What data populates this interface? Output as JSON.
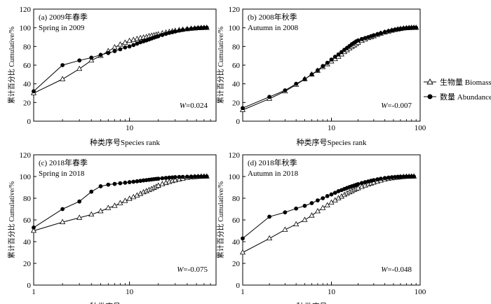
{
  "figure": {
    "legend": {
      "biomass_label": "生物量 Biomass",
      "abundance_label": "数量 Abundance"
    }
  },
  "chart_data": [
    {
      "type": "line",
      "panel_label": "(a) 2009年春季",
      "panel_subtitle": "Spring in 2009",
      "w_prefix": "W",
      "w_value": "=0.024",
      "xlabel": "种类序号Species rank",
      "ylabel": "累计百分比 Cumulative/%",
      "xscale": "log",
      "xlim": [
        1,
        80
      ],
      "ylim": [
        0,
        120
      ],
      "xticks": [
        {
          "v": 10,
          "label": "10"
        }
      ],
      "yticks": [
        0,
        20,
        40,
        60,
        80,
        100,
        120
      ],
      "series": [
        {
          "name": "生物量 Biomass",
          "marker": "open-triangle",
          "x": [
            1,
            2,
            3,
            4,
            5,
            6,
            7,
            8,
            9,
            10,
            11,
            12,
            13,
            14,
            15,
            16,
            17,
            18,
            19,
            20,
            22,
            24,
            26,
            28,
            30,
            33,
            36,
            40,
            44,
            48,
            52,
            56,
            60,
            64
          ],
          "y": [
            30,
            45,
            56,
            65,
            70,
            75,
            79,
            82,
            84,
            86,
            87,
            88,
            89,
            89.5,
            90,
            91,
            91.5,
            92,
            92.5,
            93,
            94,
            94.8,
            95.5,
            96.2,
            96.8,
            97.5,
            98,
            98.6,
            99,
            99.3,
            99.6,
            99.8,
            99.9,
            100
          ]
        },
        {
          "name": "数量 Abundance",
          "marker": "filled-circle",
          "x": [
            1,
            2,
            3,
            4,
            5,
            6,
            7,
            8,
            9,
            10,
            11,
            12,
            13,
            14,
            15,
            16,
            17,
            18,
            19,
            20,
            22,
            24,
            26,
            28,
            30,
            33,
            36,
            40,
            44,
            48,
            52,
            56,
            60,
            64
          ],
          "y": [
            32,
            60,
            65,
            68,
            71,
            73,
            75,
            77,
            79,
            80,
            81.5,
            83,
            84.5,
            85.5,
            86.5,
            87.5,
            88.5,
            89.5,
            90.3,
            91,
            92.3,
            93.5,
            94.5,
            95.3,
            96,
            97,
            97.7,
            98.5,
            99,
            99.4,
            99.7,
            99.9,
            100,
            100
          ]
        }
      ]
    },
    {
      "type": "line",
      "panel_label": "(b) 2008年秋季",
      "panel_subtitle": "Autumn in 2008",
      "w_prefix": "W",
      "w_value": "=-0.007",
      "xlabel": "种类序号Species rank",
      "ylabel": "累计百分比 Cumulative/%",
      "xscale": "log",
      "xlim": [
        1,
        100
      ],
      "ylim": [
        0,
        120
      ],
      "xticks": [
        {
          "v": 10,
          "label": "10"
        },
        {
          "v": 100,
          "label": "100"
        }
      ],
      "yticks": [
        0,
        20,
        40,
        60,
        80,
        100,
        120
      ],
      "series": [
        {
          "name": "生物量 Biomass",
          "marker": "open-triangle",
          "x": [
            1,
            2,
            3,
            4,
            5,
            6,
            7,
            8,
            9,
            10,
            11,
            12,
            13,
            14,
            15,
            16,
            17,
            18,
            19,
            20,
            22,
            24,
            26,
            28,
            30,
            33,
            36,
            40,
            44,
            48,
            52,
            56,
            60,
            65,
            70,
            75,
            80,
            85,
            90
          ],
          "y": [
            12,
            24,
            32,
            39,
            45,
            50,
            54,
            58,
            61,
            64,
            66.5,
            69,
            71.5,
            74,
            76,
            78,
            79.5,
            81,
            82.5,
            84,
            86,
            87.5,
            89,
            90,
            91,
            92.5,
            93.8,
            95,
            96,
            97,
            97.7,
            98.3,
            98.8,
            99.3,
            99.6,
            99.8,
            99.9,
            100,
            100
          ]
        },
        {
          "name": "数量 Abundance",
          "marker": "filled-circle",
          "x": [
            1,
            2,
            3,
            4,
            5,
            6,
            7,
            8,
            9,
            10,
            11,
            12,
            13,
            14,
            15,
            16,
            17,
            18,
            19,
            20,
            22,
            24,
            26,
            28,
            30,
            33,
            36,
            40,
            44,
            48,
            52,
            56,
            60,
            65,
            70,
            75,
            80,
            85,
            90
          ],
          "y": [
            14,
            26,
            33,
            40,
            45,
            50,
            54.5,
            59,
            62.5,
            66,
            69,
            71.5,
            74,
            76.5,
            78.5,
            80.5,
            82.5,
            84,
            85.5,
            86.5,
            88,
            89,
            90,
            91,
            92,
            93.2,
            94.3,
            95.5,
            96.5,
            97.3,
            98,
            98.5,
            99,
            99.4,
            99.7,
            99.9,
            100,
            100,
            100
          ]
        }
      ]
    },
    {
      "type": "line",
      "panel_label": "(c) 2018年春季",
      "panel_subtitle": "Spring in 2018",
      "w_prefix": "W",
      "w_value": "=-0.075",
      "xlabel": "种类序号Species rank",
      "ylabel": "累计百分比 Cumulative/%",
      "xscale": "log",
      "xlim": [
        1,
        80
      ],
      "ylim": [
        0,
        120
      ],
      "xticks": [
        {
          "v": 1,
          "label": "1"
        },
        {
          "v": 10,
          "label": "10"
        }
      ],
      "yticks": [
        0,
        20,
        40,
        60,
        80,
        100,
        120
      ],
      "series": [
        {
          "name": "生物量 Biomass",
          "marker": "open-triangle",
          "x": [
            1,
            2,
            3,
            4,
            5,
            6,
            7,
            8,
            9,
            10,
            11,
            12,
            13,
            14,
            15,
            16,
            17,
            18,
            19,
            20,
            22,
            24,
            26,
            28,
            30,
            33,
            36,
            40,
            44,
            48,
            52,
            56,
            60,
            64
          ],
          "y": [
            50,
            58,
            62,
            65,
            68,
            71,
            73,
            75.5,
            77.5,
            79.5,
            81,
            82.5,
            84,
            85.5,
            86.5,
            87.5,
            88.5,
            89.5,
            90.5,
            91.5,
            93,
            94,
            95,
            95.8,
            96.5,
            97.4,
            98.1,
            98.8,
            99.2,
            99.5,
            99.7,
            99.9,
            100,
            100
          ]
        },
        {
          "name": "数量 Abundance",
          "marker": "filled-circle",
          "x": [
            1,
            2,
            3,
            4,
            5,
            6,
            7,
            8,
            9,
            10,
            11,
            12,
            13,
            14,
            15,
            16,
            17,
            18,
            19,
            20,
            22,
            24,
            26,
            28,
            30,
            33,
            36,
            40,
            44,
            48,
            52,
            56,
            60,
            64
          ],
          "y": [
            53,
            70,
            77,
            86,
            91,
            92.5,
            93.2,
            93.8,
            94.3,
            94.8,
            95.2,
            95.6,
            96,
            96.4,
            96.7,
            97,
            97.3,
            97.6,
            97.8,
            98,
            98.4,
            98.7,
            99,
            99.2,
            99.4,
            99.6,
            99.7,
            99.8,
            99.9,
            100,
            100,
            100,
            100,
            100
          ]
        }
      ]
    },
    {
      "type": "line",
      "panel_label": "(d) 2018年秋季",
      "panel_subtitle": "Autumn in 2018",
      "w_prefix": "W",
      "w_value": "=-0.048",
      "xlabel": "种类序号Species rank",
      "ylabel": "累计百分比 Cumulative/%",
      "xscale": "log",
      "xlim": [
        1,
        100
      ],
      "ylim": [
        0,
        120
      ],
      "xticks": [
        {
          "v": 1,
          "label": "1"
        },
        {
          "v": 10,
          "label": "10"
        },
        {
          "v": 100,
          "label": "100"
        }
      ],
      "yticks": [
        0,
        20,
        40,
        60,
        80,
        100,
        120
      ],
      "series": [
        {
          "name": "生物量 Biomass",
          "marker": "open-triangle",
          "x": [
            1,
            2,
            3,
            4,
            5,
            6,
            7,
            8,
            9,
            10,
            11,
            12,
            13,
            14,
            15,
            16,
            17,
            18,
            19,
            20,
            22,
            24,
            26,
            28,
            30,
            33,
            36,
            40,
            44,
            48,
            52,
            56,
            60,
            65,
            70,
            75,
            80,
            85
          ],
          "y": [
            30,
            43,
            51,
            56,
            60,
            64,
            68,
            71,
            73.5,
            76,
            78,
            80,
            81.5,
            83,
            84.5,
            85.5,
            86.5,
            87.5,
            88.5,
            89.2,
            90.5,
            91.7,
            92.7,
            93.6,
            94.4,
            95.4,
            96.3,
            97.2,
            97.9,
            98.4,
            98.8,
            99.1,
            99.4,
            99.6,
            99.8,
            99.9,
            100,
            100
          ]
        },
        {
          "name": "数量 Abundance",
          "marker": "filled-circle",
          "x": [
            1,
            2,
            3,
            4,
            5,
            6,
            7,
            8,
            9,
            10,
            11,
            12,
            13,
            14,
            15,
            16,
            17,
            18,
            19,
            20,
            22,
            24,
            26,
            28,
            30,
            33,
            36,
            40,
            44,
            48,
            52,
            56,
            60,
            65,
            70,
            75,
            80,
            85
          ],
          "y": [
            43,
            63,
            67,
            70.5,
            73,
            75.5,
            78,
            80,
            82,
            83.5,
            85,
            86.5,
            87.5,
            88.5,
            89.5,
            90.3,
            91,
            91.7,
            92.3,
            93,
            94,
            94.8,
            95.5,
            96.1,
            96.7,
            97.4,
            98,
            98.6,
            99,
            99.3,
            99.5,
            99.7,
            99.8,
            99.9,
            100,
            100,
            100,
            100
          ]
        }
      ]
    }
  ]
}
